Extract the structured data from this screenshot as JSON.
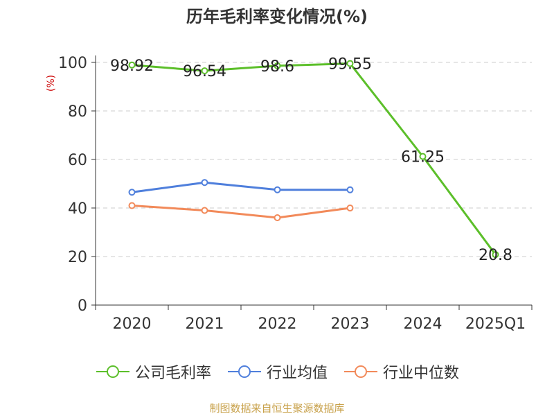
{
  "title": "历年毛利率变化情况(%)",
  "unit_label": "(%)",
  "source": "制图数据来自恒生聚源数据库",
  "chart_data": {
    "type": "line",
    "title": "历年毛利率变化情况(%)",
    "ylabel": "(%)",
    "categories": [
      "2020",
      "2021",
      "2022",
      "2023",
      "2024",
      "2025Q1"
    ],
    "ylim": [
      0,
      100
    ],
    "yticks": [
      0,
      20,
      40,
      60,
      80,
      100
    ],
    "grid": "horizontal-dashed",
    "legend_position": "bottom",
    "series": [
      {
        "name": "公司毛利率",
        "color": "#5cbf2a",
        "values": [
          98.92,
          96.54,
          98.6,
          99.55,
          61.25,
          20.8
        ],
        "labels": [
          "98.92",
          "96.54",
          "98.6",
          "99.55",
          "61.25",
          "20.8"
        ]
      },
      {
        "name": "行业均值",
        "color": "#4f7fdc",
        "values": [
          46.5,
          50.5,
          47.5,
          47.5,
          null,
          null
        ]
      },
      {
        "name": "行业中位数",
        "color": "#f28a5a",
        "values": [
          41,
          39,
          36,
          40,
          null,
          null
        ]
      }
    ]
  }
}
